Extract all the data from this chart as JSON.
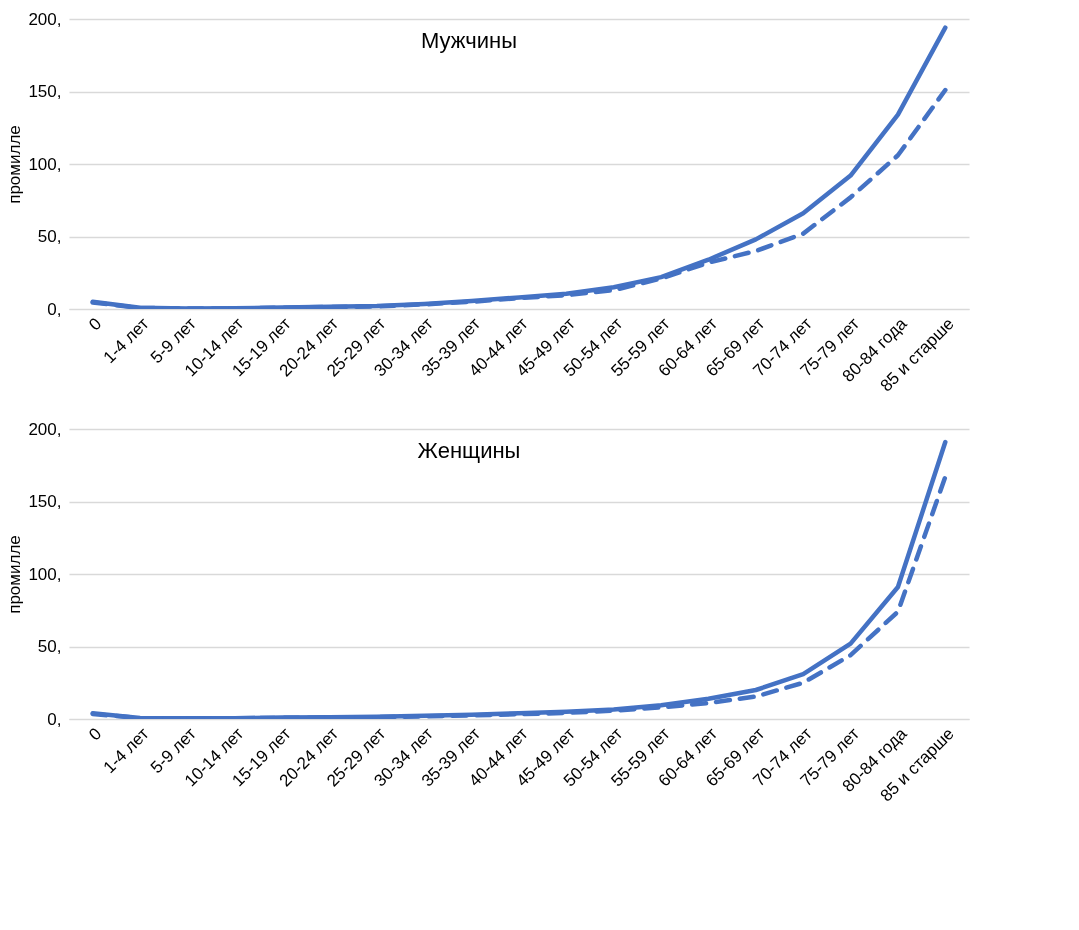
{
  "chart_data": [
    {
      "type": "line",
      "title": "Мужчины",
      "ylabel": "промилле",
      "categories": [
        "0",
        "1-4 лет",
        "5-9 лет",
        "10-14 лет",
        "15-19 лет",
        "20-24 лет",
        "25-29 лет",
        "30-34 лет",
        "35-39 лет",
        "40-44 лет",
        "45-49 лет",
        "50-54 лет",
        "55-59 лет",
        "60-64 лет",
        "65-69 лет",
        "70-74 лет",
        "75-79 лет",
        "80-84 года",
        "85 и старше"
      ],
      "series": [
        {
          "color": "#4472c4",
          "line_style": "solid",
          "values": [
            5,
            0.8,
            0.4,
            0.5,
            1,
            1.5,
            2,
            3.5,
            5.5,
            8,
            10.5,
            15,
            22,
            34,
            48,
            66,
            92,
            134,
            194
          ]
        },
        {
          "color": "#4472c4",
          "line_style": "dashed",
          "values": [
            4.5,
            0.7,
            0.4,
            0.4,
            0.9,
            1.4,
            1.8,
            3.2,
            5,
            7.5,
            9.5,
            13,
            21,
            32,
            40,
            52,
            77,
            106,
            151
          ]
        }
      ],
      "ylim": [
        0,
        200
      ],
      "yticks": [
        {
          "value": 0,
          "label": "0,"
        },
        {
          "value": 50,
          "label": "50,"
        },
        {
          "value": 100,
          "label": "100,"
        },
        {
          "value": 150,
          "label": "150,"
        },
        {
          "value": 200,
          "label": "200,"
        }
      ],
      "grid": "y",
      "marker": "none"
    },
    {
      "type": "line",
      "title": "Женщины",
      "ylabel": "промилле",
      "categories": [
        "0",
        "1-4 лет",
        "5-9 лет",
        "10-14 лет",
        "15-19 лет",
        "20-24 лет",
        "25-29 лет",
        "30-34 лет",
        "35-39 лет",
        "40-44 лет",
        "45-49 лет",
        "50-54 лет",
        "55-59 лет",
        "60-64 лет",
        "65-69 лет",
        "70-74 лет",
        "75-79 лет",
        "80-84 года",
        "85 и старше"
      ],
      "series": [
        {
          "color": "#4472c4",
          "line_style": "solid",
          "values": [
            4,
            0.7,
            0.5,
            0.6,
            1,
            1.2,
            1.6,
            2.2,
            3,
            4,
            5,
            6.5,
            9.5,
            14,
            20,
            31,
            52,
            91,
            191
          ]
        },
        {
          "color": "#4472c4",
          "line_style": "dashed",
          "values": [
            3.5,
            0.6,
            0.4,
            0.5,
            0.8,
            1,
            1.3,
            1.8,
            2.5,
            3.3,
            4.2,
            5.8,
            8,
            11,
            15.5,
            25,
            44,
            74,
            167
          ]
        }
      ],
      "ylim": [
        0,
        200
      ],
      "yticks": [
        {
          "value": 0,
          "label": "0,"
        },
        {
          "value": 50,
          "label": "50,"
        },
        {
          "value": 100,
          "label": "100,"
        },
        {
          "value": 150,
          "label": "150,"
        },
        {
          "value": 200,
          "label": "200,"
        }
      ],
      "grid": "y",
      "marker": "none"
    }
  ]
}
